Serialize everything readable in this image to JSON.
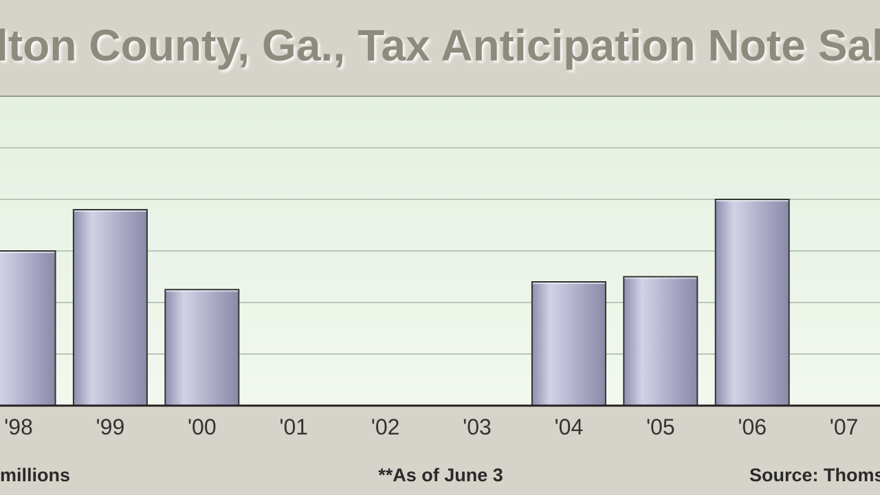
{
  "chart_data": {
    "type": "bar",
    "title": "lton County, Ga., Tax Anticipation Note Sal",
    "categories": [
      "'98",
      "'99",
      "'00",
      "'01",
      "'02",
      "'03",
      "'04",
      "'05",
      "'06",
      "'07"
    ],
    "values": [
      3.0,
      3.8,
      2.25,
      null,
      null,
      null,
      2.4,
      2.5,
      4.0,
      null
    ],
    "color": "#a9a9c6",
    "ylim": [
      0,
      6
    ],
    "gridlines": [
      1,
      2,
      3,
      4,
      5
    ],
    "unit_note": "millions",
    "footnote": "**As of June 3",
    "source": "Source: Thoms"
  }
}
